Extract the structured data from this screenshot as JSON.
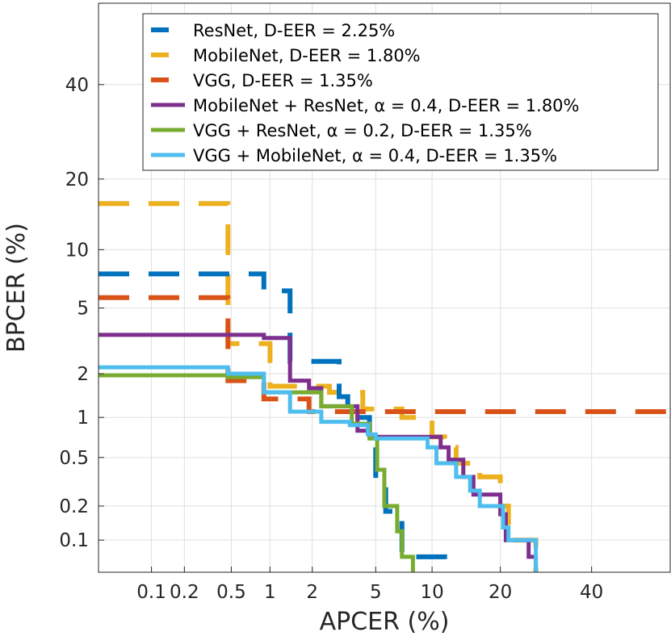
{
  "chart_data": {
    "type": "line",
    "title": "",
    "xlabel": "APCER (%)",
    "ylabel": "BPCER (%)",
    "x_scale": "probit",
    "y_scale": "probit",
    "xlim": [
      0.03,
      60
    ],
    "ylim": [
      0.05,
      60
    ],
    "grid": true,
    "legend_position": "top-right",
    "x_ticks": [
      {
        "value": 0.1,
        "label": "0.1"
      },
      {
        "value": 0.2,
        "label": "0.2"
      },
      {
        "value": 0.5,
        "label": "0.5"
      },
      {
        "value": 1,
        "label": "1"
      },
      {
        "value": 2,
        "label": "2"
      },
      {
        "value": 5,
        "label": "5"
      },
      {
        "value": 10,
        "label": "10"
      },
      {
        "value": 20,
        "label": "20"
      },
      {
        "value": 40,
        "label": "40"
      }
    ],
    "y_ticks": [
      {
        "value": 0.1,
        "label": "0.1"
      },
      {
        "value": 0.2,
        "label": "0.2"
      },
      {
        "value": 0.5,
        "label": "0.5"
      },
      {
        "value": 1,
        "label": "1"
      },
      {
        "value": 2,
        "label": "2"
      },
      {
        "value": 5,
        "label": "5"
      },
      {
        "value": 10,
        "label": "10"
      },
      {
        "value": 20,
        "label": "20"
      },
      {
        "value": 40,
        "label": "40"
      }
    ],
    "series": [
      {
        "name": "ResNet",
        "legend": "ResNet, D-EER = 2.25%",
        "color": "#0072BD",
        "dashed": true,
        "points": [
          [
            0.03,
            7.6
          ],
          [
            0.9,
            7.6
          ],
          [
            0.9,
            6.2
          ],
          [
            1.4,
            6.2
          ],
          [
            1.4,
            2.4
          ],
          [
            3.0,
            2.4
          ],
          [
            3.0,
            1.4
          ],
          [
            3.4,
            1.4
          ],
          [
            3.4,
            1.0
          ],
          [
            4.6,
            1.0
          ],
          [
            4.6,
            0.6
          ],
          [
            5.0,
            0.6
          ],
          [
            5.0,
            0.32
          ],
          [
            5.7,
            0.32
          ],
          [
            5.7,
            0.18
          ],
          [
            7.0,
            0.18
          ],
          [
            7.0,
            0.07
          ],
          [
            11.5,
            0.07
          ],
          [
            11.5,
            0.05
          ]
        ]
      },
      {
        "name": "MobileNet",
        "legend": "MobileNet, D-EER = 1.80%",
        "color": "#EDB120",
        "dashed": true,
        "points": [
          [
            0.03,
            16
          ],
          [
            0.47,
            16
          ],
          [
            0.47,
            3.1
          ],
          [
            1.0,
            3.1
          ],
          [
            1.0,
            1.65
          ],
          [
            2.6,
            1.65
          ],
          [
            2.6,
            1.5
          ],
          [
            4.2,
            1.5
          ],
          [
            4.2,
            1.15
          ],
          [
            7.0,
            1.15
          ],
          [
            7.0,
            1.0
          ],
          [
            10.0,
            1.0
          ],
          [
            10.0,
            0.72
          ],
          [
            11.5,
            0.72
          ],
          [
            11.5,
            0.6
          ],
          [
            13,
            0.6
          ],
          [
            13,
            0.45
          ],
          [
            16.5,
            0.45
          ],
          [
            16.5,
            0.35
          ],
          [
            20,
            0.35
          ],
          [
            20,
            0.2
          ],
          [
            21.5,
            0.2
          ],
          [
            21.5,
            0.1
          ],
          [
            27,
            0.1
          ],
          [
            27,
            0.05
          ]
        ]
      },
      {
        "name": "VGG",
        "legend": "VGG, D-EER = 1.35%",
        "color": "#D95319",
        "dashed": true,
        "points": [
          [
            0.03,
            5.7
          ],
          [
            0.47,
            5.7
          ],
          [
            0.47,
            1.8
          ],
          [
            0.9,
            1.8
          ],
          [
            0.9,
            1.35
          ],
          [
            1.9,
            1.35
          ],
          [
            1.9,
            1.1
          ],
          [
            60,
            1.1
          ]
        ]
      },
      {
        "name": "MobileNet + ResNet",
        "legend": "MobileNet + ResNet, α = 0.4, D-EER = 1.80%",
        "color": "#7E2F8E",
        "dashed": false,
        "points": [
          [
            0.03,
            3.5
          ],
          [
            0.9,
            3.5
          ],
          [
            0.9,
            3.35
          ],
          [
            1.4,
            3.35
          ],
          [
            1.4,
            1.8
          ],
          [
            1.9,
            1.8
          ],
          [
            1.9,
            1.6
          ],
          [
            2.3,
            1.6
          ],
          [
            2.3,
            1.2
          ],
          [
            3.9,
            1.2
          ],
          [
            3.9,
            0.8
          ],
          [
            4.6,
            0.8
          ],
          [
            4.6,
            0.72
          ],
          [
            11,
            0.72
          ],
          [
            11,
            0.6
          ],
          [
            12,
            0.6
          ],
          [
            12,
            0.48
          ],
          [
            14,
            0.48
          ],
          [
            14,
            0.35
          ],
          [
            15.5,
            0.35
          ],
          [
            15.5,
            0.25
          ],
          [
            20,
            0.25
          ],
          [
            20,
            0.17
          ],
          [
            21,
            0.17
          ],
          [
            21,
            0.1
          ],
          [
            25.5,
            0.1
          ],
          [
            25.5,
            0.07
          ],
          [
            27,
            0.07
          ],
          [
            27,
            0.05
          ]
        ]
      },
      {
        "name": "VGG + ResNet",
        "legend": "VGG + ResNet, α = 0.2, D-EER = 1.35%",
        "color": "#77AC30",
        "dashed": false,
        "points": [
          [
            0.03,
            1.95
          ],
          [
            0.47,
            1.95
          ],
          [
            0.47,
            1.9
          ],
          [
            0.9,
            1.9
          ],
          [
            0.9,
            1.5
          ],
          [
            2.3,
            1.5
          ],
          [
            2.3,
            1.2
          ],
          [
            3.6,
            1.2
          ],
          [
            3.6,
            0.9
          ],
          [
            4.6,
            0.9
          ],
          [
            4.6,
            0.7
          ],
          [
            5.1,
            0.7
          ],
          [
            5.1,
            0.4
          ],
          [
            5.6,
            0.4
          ],
          [
            5.6,
            0.2
          ],
          [
            6.6,
            0.2
          ],
          [
            6.6,
            0.12
          ],
          [
            7.0,
            0.12
          ],
          [
            7.0,
            0.07
          ],
          [
            8.0,
            0.07
          ],
          [
            8.0,
            0.05
          ]
        ]
      },
      {
        "name": "VGG + MobileNet",
        "legend": "VGG + MobileNet, α = 0.4, D-EER = 1.35%",
        "color": "#4DBEEE",
        "dashed": false,
        "points": [
          [
            0.03,
            2.2
          ],
          [
            0.47,
            2.2
          ],
          [
            0.47,
            2.0
          ],
          [
            0.9,
            2.0
          ],
          [
            0.9,
            1.5
          ],
          [
            1.4,
            1.5
          ],
          [
            1.4,
            1.1
          ],
          [
            2.3,
            1.1
          ],
          [
            2.3,
            0.93
          ],
          [
            3.5,
            0.93
          ],
          [
            3.5,
            0.88
          ],
          [
            4.5,
            0.88
          ],
          [
            4.5,
            0.75
          ],
          [
            5.0,
            0.75
          ],
          [
            5.0,
            0.7
          ],
          [
            9.5,
            0.7
          ],
          [
            9.5,
            0.6
          ],
          [
            10.5,
            0.6
          ],
          [
            10.5,
            0.45
          ],
          [
            13,
            0.45
          ],
          [
            13,
            0.35
          ],
          [
            15,
            0.35
          ],
          [
            15,
            0.27
          ],
          [
            16.5,
            0.27
          ],
          [
            16.5,
            0.2
          ],
          [
            20.5,
            0.2
          ],
          [
            20.5,
            0.13
          ],
          [
            21.5,
            0.13
          ],
          [
            21.5,
            0.1
          ],
          [
            27,
            0.1
          ],
          [
            27,
            0.05
          ]
        ]
      }
    ]
  }
}
